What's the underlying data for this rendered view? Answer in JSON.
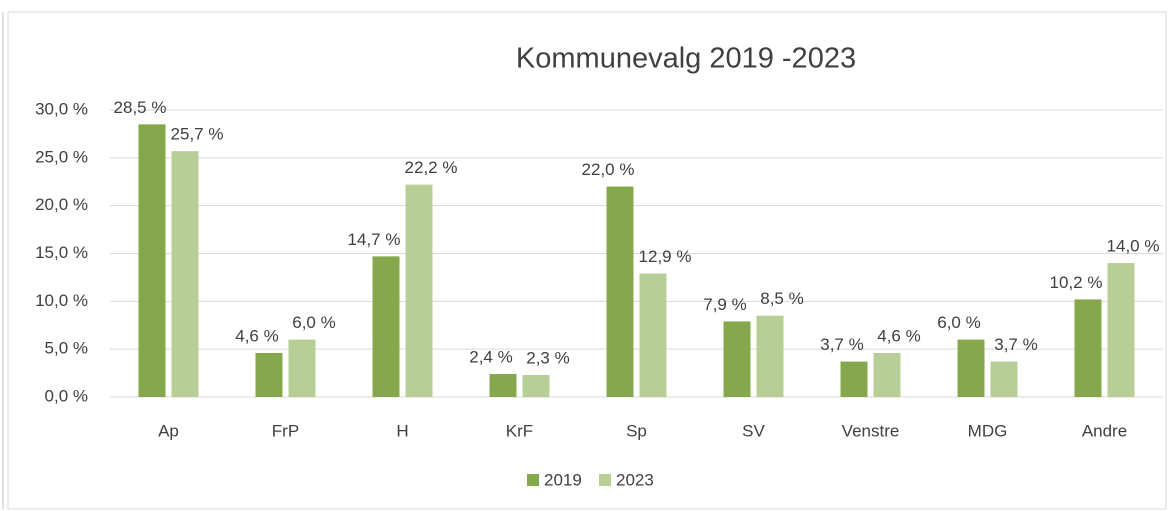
{
  "chart_data": {
    "type": "bar",
    "title": "Kommunevalg 2019 -2023",
    "categories": [
      "Ap",
      "FrP",
      "H",
      "KrF",
      "Sp",
      "SV",
      "Venstre",
      "MDG",
      "Andre"
    ],
    "series": [
      {
        "name": "2019",
        "color": "#86a84c",
        "values": [
          28.5,
          4.6,
          14.7,
          2.4,
          22.0,
          7.9,
          3.7,
          6.0,
          10.2
        ],
        "value_labels": [
          "28,5 %",
          "4,6 %",
          "14,7 %",
          "2,4 %",
          "22,0 %",
          "7,9 %",
          "3,7 %",
          "6,0 %",
          "10,2 %"
        ]
      },
      {
        "name": "2023",
        "color": "#b7cf96",
        "values": [
          25.7,
          6.0,
          22.2,
          2.3,
          12.9,
          8.5,
          4.6,
          3.7,
          14.0
        ],
        "value_labels": [
          "25,7 %",
          "6,0 %",
          "22,2 %",
          "2,3 %",
          "12,9 %",
          "8,5 %",
          "4,6 %",
          "3,7 %",
          "14,0 %"
        ]
      }
    ],
    "ylim": [
      0,
      30
    ],
    "yticks": [
      {
        "value": 0,
        "label": "0,0 %"
      },
      {
        "value": 5,
        "label": "5,0 %"
      },
      {
        "value": 10,
        "label": "10,0 %"
      },
      {
        "value": 15,
        "label": "15,0 %"
      },
      {
        "value": 20,
        "label": "20,0 %"
      },
      {
        "value": 25,
        "label": "25,0 %"
      },
      {
        "value": 30,
        "label": "30,0 %"
      }
    ],
    "grid": true,
    "legend": "bottom"
  }
}
